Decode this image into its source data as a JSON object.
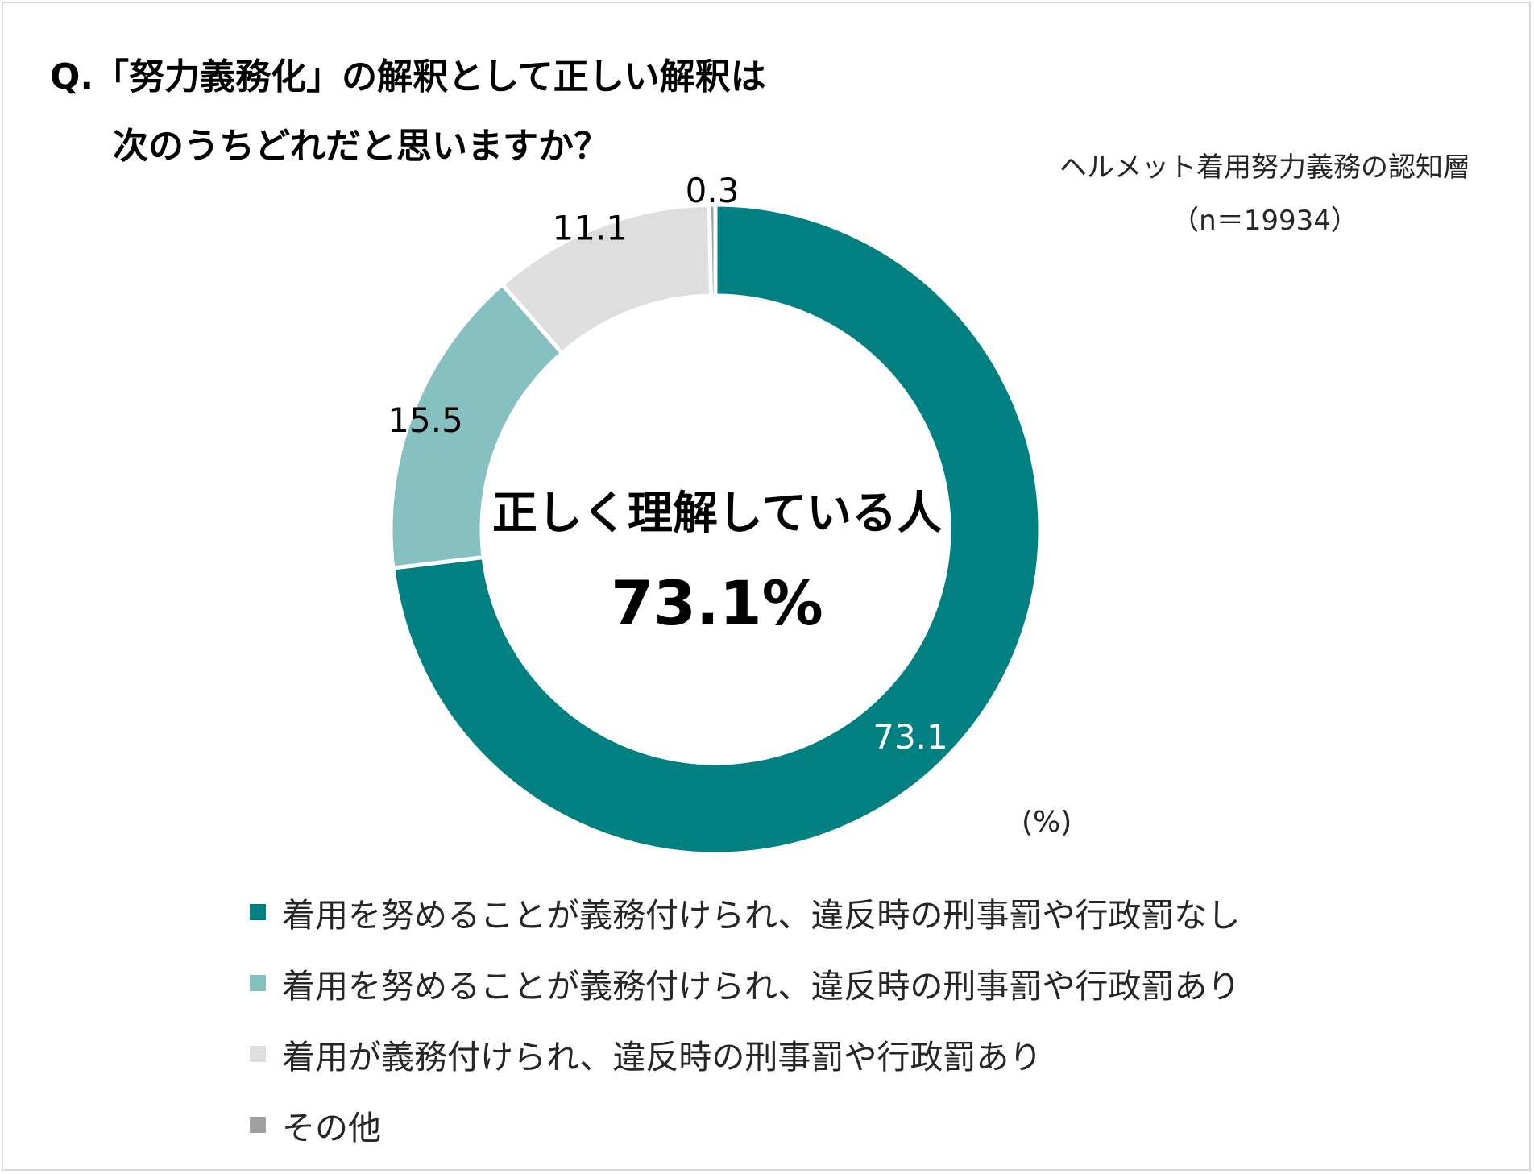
{
  "title": {
    "line1": "Q.「努力義務化」の解釈として正しい解釈は",
    "line2": "次のうちどれだと思いますか？"
  },
  "sample": {
    "name": "ヘルメット着用努力義務の認知層",
    "n": "（n＝19934）"
  },
  "unit_label": "(%)",
  "chart_data": {
    "type": "pie",
    "style": "donut",
    "title": "Q.「努力義務化」の解釈として正しい解釈は次のうちどれだと思いますか？",
    "unit": "%",
    "categories": [
      "着用を努めることが義務付けられ、違反時の刑事罰や行政罰なし",
      "着用を努めることが義務付けられ、違反時の刑事罰や行政罰あり",
      "着用が義務付けられ、違反時の刑事罰や行政罰あり",
      "その他"
    ],
    "values": [
      73.1,
      15.5,
      11.1,
      0.3
    ],
    "value_labels": [
      "73.1",
      "15.5",
      "11.1",
      "0.3"
    ],
    "colors": [
      "#008080",
      "#86c0c0",
      "#dedede",
      "#a0a0a0"
    ],
    "label_colors": [
      "#ffffff",
      "#000000",
      "#000000",
      "#000000"
    ],
    "center_text": {
      "line1": "正しく理解している人",
      "line2": "73.1%"
    },
    "legend_position": "bottom"
  }
}
